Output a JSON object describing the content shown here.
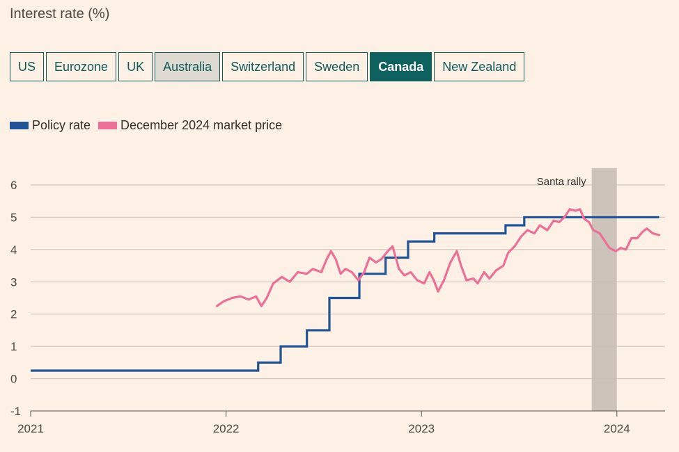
{
  "title": "Interest rate (%)",
  "tabs": [
    {
      "label": "US",
      "state": "normal"
    },
    {
      "label": "Eurozone",
      "state": "normal"
    },
    {
      "label": "UK",
      "state": "normal"
    },
    {
      "label": "Australia",
      "state": "disabled"
    },
    {
      "label": "Switzerland",
      "state": "normal"
    },
    {
      "label": "Sweden",
      "state": "normal"
    },
    {
      "label": "Canada",
      "state": "selected"
    },
    {
      "label": "New Zealand",
      "state": "normal"
    }
  ],
  "colors": {
    "background": "#fdf1e6",
    "policy": "#1f5496",
    "market": "#ed6f97",
    "shade": "#cdc3bb",
    "tab_selected": "#0d6260",
    "tab_border": "#0f5a5a",
    "grid": "#c9c0b7",
    "axis": "#55514d"
  },
  "chart_data": {
    "type": "line",
    "title": "Interest rate (%)",
    "legend_placement": "top-left",
    "grid": true,
    "ylim": [
      -1,
      6
    ],
    "yticks": [
      -1,
      0,
      1,
      2,
      3,
      4,
      5,
      6
    ],
    "ytick_labels": [
      "-1",
      "0",
      "1",
      "2",
      "3",
      "4",
      "5",
      "6"
    ],
    "xlim": [
      "2021-01-01",
      "2024-03-31"
    ],
    "xticks": [
      "2021-01-01",
      "2022-01-01",
      "2023-01-01",
      "2024-01-01"
    ],
    "xtick_labels": [
      "2021",
      "2022",
      "2023",
      "2024"
    ],
    "annotation": {
      "label": "Santa rally",
      "start": "2023-11-15",
      "end": "2024-01-01"
    },
    "series": [
      {
        "name": "Policy rate",
        "style": "step",
        "points": [
          [
            "2021-01-01",
            0.25
          ],
          [
            "2022-03-02",
            0.5
          ],
          [
            "2022-04-13",
            1.0
          ],
          [
            "2022-06-01",
            1.5
          ],
          [
            "2022-07-13",
            2.5
          ],
          [
            "2022-09-07",
            3.25
          ],
          [
            "2022-10-26",
            3.75
          ],
          [
            "2022-12-07",
            4.25
          ],
          [
            "2023-01-25",
            4.5
          ],
          [
            "2023-06-07",
            4.75
          ],
          [
            "2023-07-12",
            5.0
          ],
          [
            "2024-03-20",
            5.0
          ]
        ]
      },
      {
        "name": "December 2024 market price",
        "style": "line",
        "points": [
          [
            "2021-12-15",
            2.25
          ],
          [
            "2021-12-28",
            2.4
          ],
          [
            "2022-01-12",
            2.5
          ],
          [
            "2022-01-28",
            2.55
          ],
          [
            "2022-02-12",
            2.45
          ],
          [
            "2022-02-26",
            2.55
          ],
          [
            "2022-03-08",
            2.25
          ],
          [
            "2022-03-18",
            2.5
          ],
          [
            "2022-03-30",
            2.95
          ],
          [
            "2022-04-15",
            3.15
          ],
          [
            "2022-04-30",
            3.0
          ],
          [
            "2022-05-15",
            3.3
          ],
          [
            "2022-06-01",
            3.25
          ],
          [
            "2022-06-12",
            3.4
          ],
          [
            "2022-06-28",
            3.3
          ],
          [
            "2022-07-08",
            3.7
          ],
          [
            "2022-07-16",
            3.95
          ],
          [
            "2022-07-25",
            3.7
          ],
          [
            "2022-08-03",
            3.25
          ],
          [
            "2022-08-12",
            3.4
          ],
          [
            "2022-08-24",
            3.3
          ],
          [
            "2022-09-05",
            3.05
          ],
          [
            "2022-09-16",
            3.3
          ],
          [
            "2022-09-26",
            3.75
          ],
          [
            "2022-10-08",
            3.6
          ],
          [
            "2022-10-18",
            3.7
          ],
          [
            "2022-10-30",
            3.95
          ],
          [
            "2022-11-08",
            4.1
          ],
          [
            "2022-11-14",
            3.75
          ],
          [
            "2022-11-20",
            3.4
          ],
          [
            "2022-11-30",
            3.2
          ],
          [
            "2022-12-12",
            3.3
          ],
          [
            "2022-12-24",
            3.05
          ],
          [
            "2023-01-06",
            2.95
          ],
          [
            "2023-01-16",
            3.3
          ],
          [
            "2023-01-24",
            3.05
          ],
          [
            "2023-02-01",
            2.7
          ],
          [
            "2023-02-12",
            3.05
          ],
          [
            "2023-02-24",
            3.6
          ],
          [
            "2023-03-08",
            3.95
          ],
          [
            "2023-03-16",
            3.5
          ],
          [
            "2023-03-26",
            3.05
          ],
          [
            "2023-04-08",
            3.1
          ],
          [
            "2023-04-16",
            2.95
          ],
          [
            "2023-04-28",
            3.3
          ],
          [
            "2023-05-08",
            3.1
          ],
          [
            "2023-05-20",
            3.35
          ],
          [
            "2023-06-03",
            3.5
          ],
          [
            "2023-06-12",
            3.9
          ],
          [
            "2023-06-24",
            4.1
          ],
          [
            "2023-07-06",
            4.4
          ],
          [
            "2023-07-18",
            4.6
          ],
          [
            "2023-07-31",
            4.5
          ],
          [
            "2023-08-10",
            4.75
          ],
          [
            "2023-08-24",
            4.6
          ],
          [
            "2023-09-05",
            4.9
          ],
          [
            "2023-09-15",
            4.85
          ],
          [
            "2023-09-25",
            5.0
          ],
          [
            "2023-10-05",
            5.25
          ],
          [
            "2023-10-16",
            5.2
          ],
          [
            "2023-10-24",
            5.25
          ],
          [
            "2023-11-01",
            4.95
          ],
          [
            "2023-11-10",
            4.85
          ],
          [
            "2023-11-18",
            4.6
          ],
          [
            "2023-11-30",
            4.5
          ],
          [
            "2023-12-10",
            4.25
          ],
          [
            "2023-12-18",
            4.05
          ],
          [
            "2023-12-30",
            3.95
          ],
          [
            "2024-01-08",
            4.05
          ],
          [
            "2024-01-18",
            4.0
          ],
          [
            "2024-01-28",
            4.35
          ],
          [
            "2024-02-08",
            4.35
          ],
          [
            "2024-02-18",
            4.55
          ],
          [
            "2024-02-26",
            4.65
          ],
          [
            "2024-03-08",
            4.5
          ],
          [
            "2024-03-20",
            4.45
          ]
        ]
      }
    ]
  }
}
